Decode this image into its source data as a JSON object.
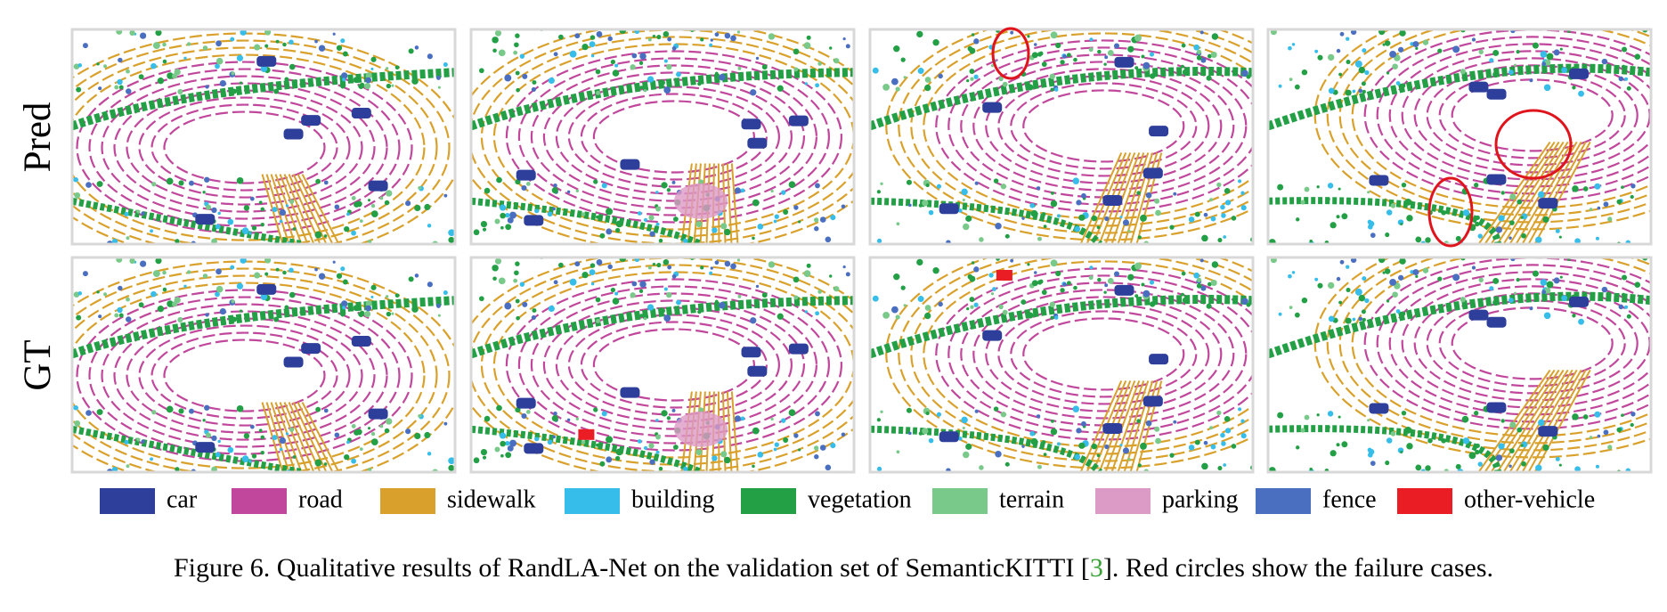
{
  "figure": {
    "row_labels": [
      "Pred",
      "GT"
    ],
    "legend": [
      {
        "label": "car",
        "color": "#2e3f9b"
      },
      {
        "label": "road",
        "color": "#c0479b"
      },
      {
        "label": "sidewalk",
        "color": "#d9a12b"
      },
      {
        "label": "building",
        "color": "#37bde9"
      },
      {
        "label": "vegetation",
        "color": "#23a046"
      },
      {
        "label": "terrain",
        "color": "#79c98a"
      },
      {
        "label": "parking",
        "color": "#dc9ac6"
      },
      {
        "label": "fence",
        "color": "#4a6fc1"
      },
      {
        "label": "other-vehicle",
        "color": "#ea1c24"
      }
    ],
    "caption": {
      "before": "Figure 6. Qualitative results of RandLA-Net on the validation set of SemanticKITTI [",
      "ref": "3",
      "after": "]. Red circles show the failure cases."
    }
  }
}
